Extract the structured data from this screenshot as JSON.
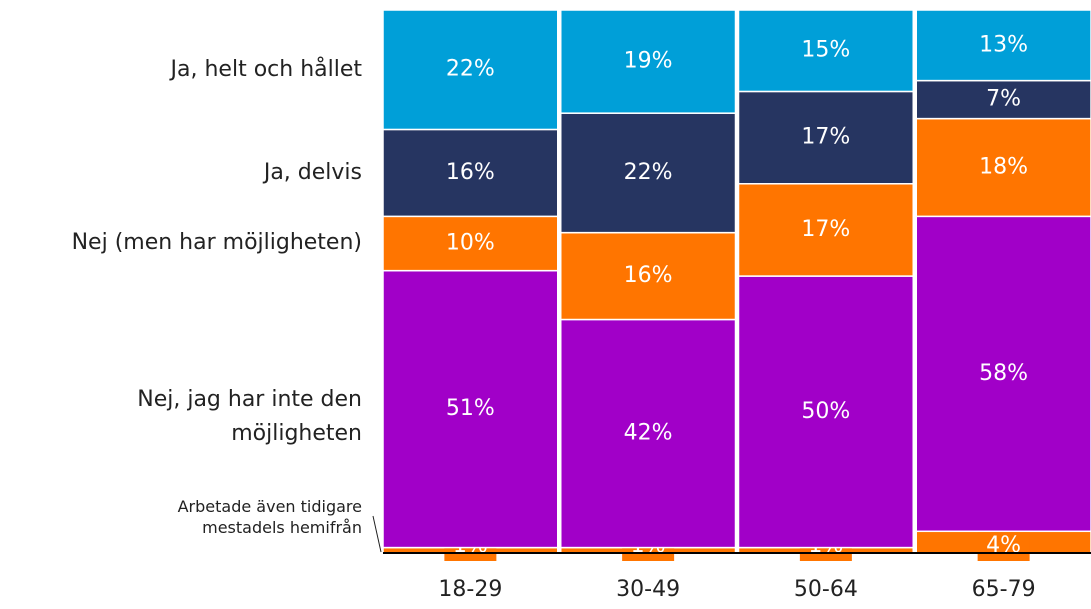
{
  "chart_data": {
    "type": "stacked_bar",
    "categories": [
      "18-29",
      "30-49",
      "50-64",
      "65-79"
    ],
    "series": [
      {
        "name": "Arbetade även tidigare mestadels hemifrån",
        "color": "#ff7500",
        "values": [
          1,
          1,
          1,
          4
        ],
        "value_labels": [
          "1%",
          "1%",
          "1%",
          "4%"
        ]
      },
      {
        "name": "Nej, jag har inte den möjligheten",
        "color": "#a100c8",
        "values": [
          51,
          42,
          50,
          58
        ],
        "value_labels": [
          "51%",
          "42%",
          "50%",
          "58%"
        ]
      },
      {
        "name": "Nej (men har möjligheten)",
        "color": "#ff7500",
        "values": [
          10,
          16,
          17,
          18
        ],
        "value_labels": [
          "10%",
          "16%",
          "17%",
          "18%"
        ]
      },
      {
        "name": "Ja, delvis",
        "color": "#263561",
        "values": [
          16,
          22,
          17,
          7
        ],
        "value_labels": [
          "16%",
          "22%",
          "17%",
          "7%"
        ]
      },
      {
        "name": "Ja, helt och hållet",
        "color": "#009fd8",
        "values": [
          22,
          19,
          15,
          13
        ],
        "value_labels": [
          "22%",
          "19%",
          "15%",
          "13%"
        ]
      }
    ]
  }
}
